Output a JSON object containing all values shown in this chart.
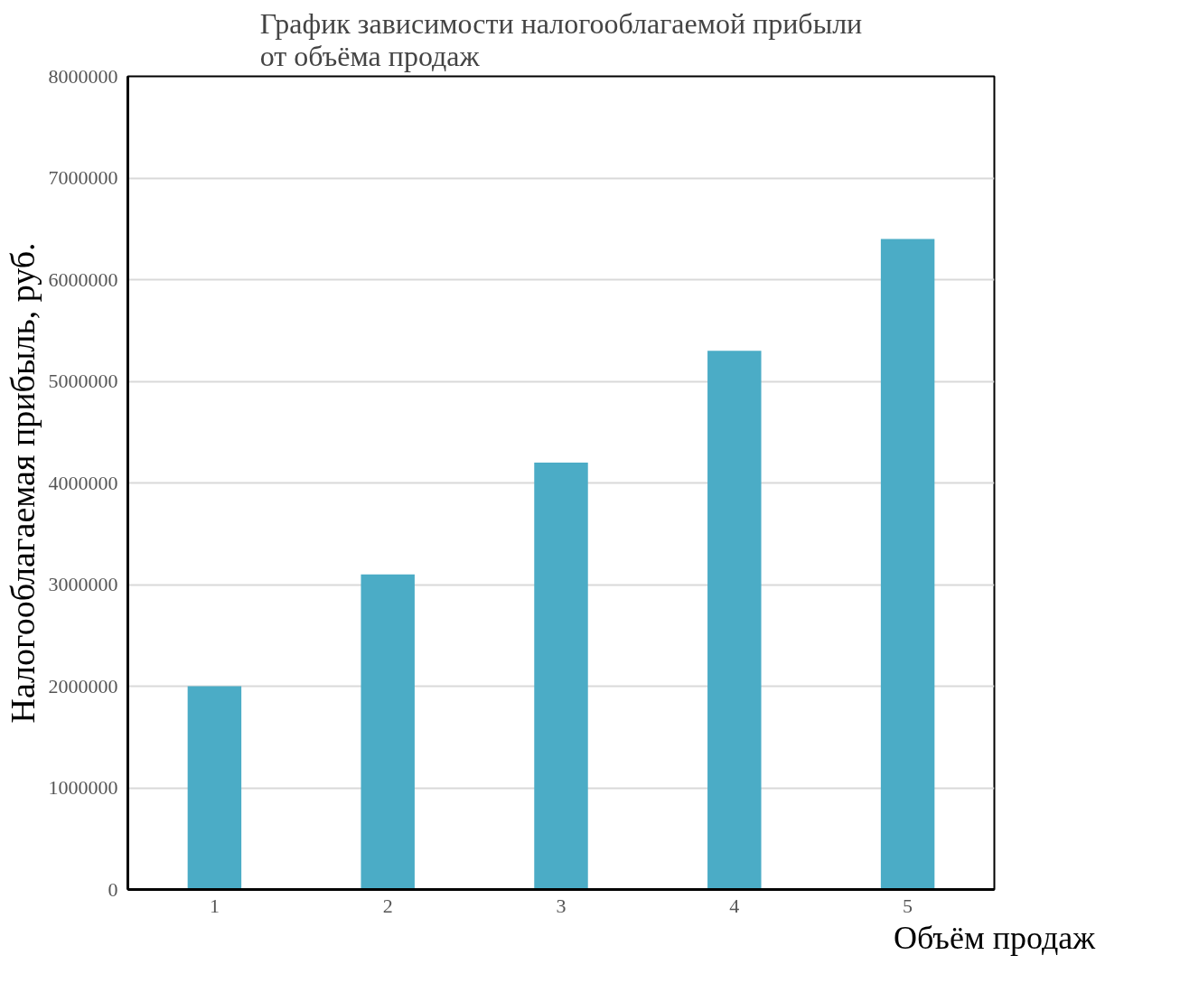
{
  "chart_data": {
    "type": "bar",
    "title": "График зависимости налогооблагаемой прибыли\nот объёма продаж",
    "xlabel": "Объём продаж",
    "ylabel": "Налогооблагаемая прибыль, руб.",
    "categories": [
      "1",
      "2",
      "3",
      "4",
      "5"
    ],
    "values": [
      2000000,
      3100000,
      4200000,
      5300000,
      6400000
    ],
    "color": "#4bacc6",
    "ylim": [
      0,
      8000000
    ],
    "yticks": [
      0,
      1000000,
      2000000,
      3000000,
      4000000,
      5000000,
      6000000,
      7000000,
      8000000
    ],
    "grid": "y"
  }
}
